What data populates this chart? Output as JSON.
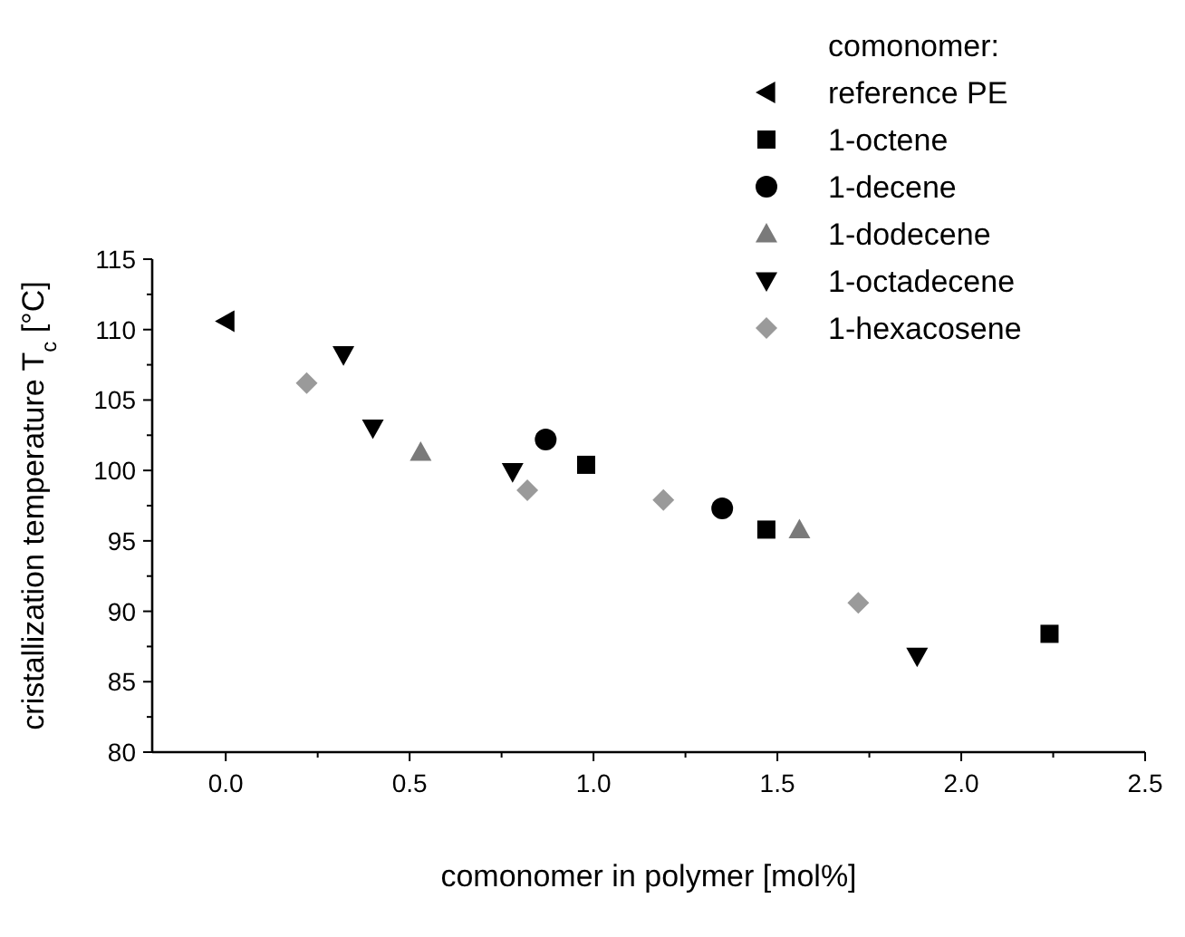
{
  "chart_data": {
    "type": "scatter",
    "xlabel": "comonomer in polymer [mol%]",
    "ylabel": "cristallization temperature T$_{c}$ [°C]",
    "legend_title": "comonomer:",
    "legend": "top right",
    "grid": false,
    "xlim": [
      -0.2,
      2.5
    ],
    "xticks": [
      {
        "value": 0,
        "label": "0.0"
      },
      {
        "value": 0.5,
        "label": "0.5"
      },
      {
        "value": 1,
        "label": "1.0"
      },
      {
        "value": 1.5,
        "label": "1.5"
      },
      {
        "value": 2,
        "label": "2.0"
      },
      {
        "value": 2.5,
        "label": "2.5"
      }
    ],
    "ylim": [
      80,
      115
    ],
    "yticks": [
      80,
      85,
      90,
      95,
      100,
      105,
      110,
      115
    ],
    "series": [
      {
        "name": "reference PE",
        "color": "#000000",
        "marker": "triangle-left",
        "x": [
          0
        ],
        "values": [
          110.6
        ]
      },
      {
        "name": "1-octene",
        "color": "#000000",
        "marker": "square",
        "x": [
          0.98,
          1.47,
          2.24
        ],
        "values": [
          100.4,
          95.8,
          88.4
        ]
      },
      {
        "name": "1-decene",
        "color": "#000000",
        "marker": "circle",
        "x": [
          0.87,
          1.35
        ],
        "values": [
          102.2,
          97.3
        ]
      },
      {
        "name": "1-dodecene",
        "color": "#7a7a7a",
        "marker": "triangle",
        "x": [
          0.53,
          1.56
        ],
        "values": [
          101.3,
          95.8
        ]
      },
      {
        "name": "1-octadecene",
        "color": "#000000",
        "marker": "triangle-down",
        "x": [
          0.32,
          0.4,
          0.78,
          1.88
        ],
        "values": [
          108.2,
          103.0,
          99.9,
          86.8
        ]
      },
      {
        "name": "1-hexacosene",
        "color": "#9a9a9a",
        "marker": "diamond",
        "x": [
          0.22,
          0.82,
          1.19,
          1.72
        ],
        "values": [
          106.2,
          98.6,
          97.9,
          90.6
        ]
      }
    ]
  }
}
